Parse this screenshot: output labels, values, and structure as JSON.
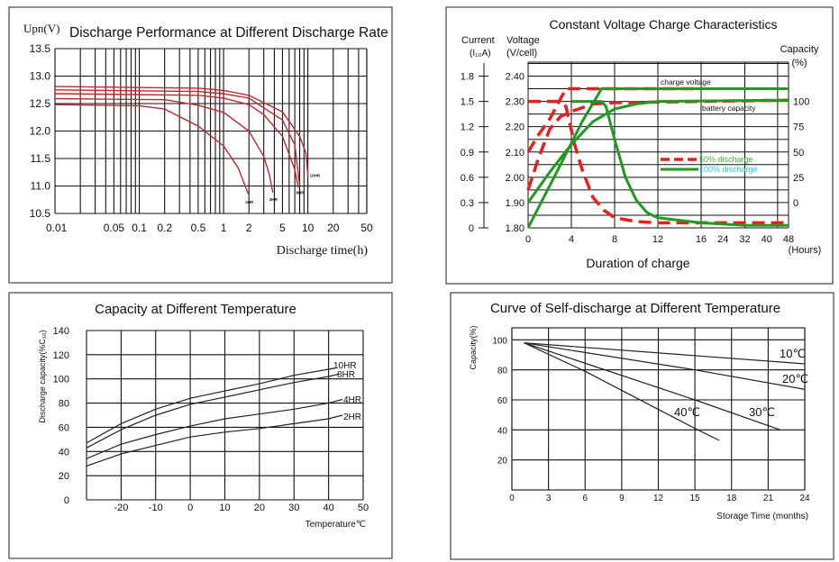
{
  "chart_data": [
    {
      "id": "discharge",
      "type": "line",
      "title": "Discharge Performance at Different Discharge Rate",
      "ylabel": "Upn(V)",
      "xlabel": "Discharge time(h)",
      "xscale": "log",
      "xlim": [
        0.01,
        50
      ],
      "ylim": [
        10.5,
        13.5
      ],
      "grid": true,
      "line_color": "#c0282d",
      "xticks": [
        "0.01",
        "0.05",
        "0.1",
        "0.2",
        "0.5",
        "1",
        "2",
        "5",
        "10",
        "20",
        "50"
      ],
      "xtick_values": [
        0.01,
        0.05,
        0.1,
        0.2,
        0.5,
        1,
        2,
        5,
        10,
        20,
        50
      ],
      "yticks": [
        "13.5",
        "13.0",
        "12.5",
        "12.0",
        "11.5",
        "11.0",
        "10.5"
      ],
      "ytick_values": [
        13.5,
        13.0,
        12.5,
        12.0,
        11.5,
        11.0,
        10.5
      ],
      "series": [
        {
          "name": "2HR",
          "points": [
            [
              0.01,
              12.48
            ],
            [
              0.1,
              12.46
            ],
            [
              0.2,
              12.4
            ],
            [
              0.5,
              12.09
            ],
            [
              1,
              11.73
            ],
            [
              1.5,
              11.32
            ],
            [
              1.8,
              11.0
            ],
            [
              2,
              10.83
            ]
          ]
        },
        {
          "name": "4HR",
          "points": [
            [
              0.01,
              12.59
            ],
            [
              0.2,
              12.57
            ],
            [
              0.5,
              12.47
            ],
            [
              1,
              12.34
            ],
            [
              2,
              12.0
            ],
            [
              3,
              11.54
            ],
            [
              3.5,
              11.2
            ],
            [
              3.85,
              10.88
            ]
          ]
        },
        {
          "name": "",
          "points": [
            [
              0.01,
              12.68
            ],
            [
              0.5,
              12.65
            ],
            [
              1,
              12.6
            ],
            [
              2,
              12.48
            ],
            [
              3,
              12.3
            ],
            [
              5,
              11.9
            ],
            [
              7,
              11.3
            ],
            [
              7.7,
              10.97
            ]
          ]
        },
        {
          "name": "8HR",
          "points": [
            [
              0.01,
              12.75
            ],
            [
              0.5,
              12.72
            ],
            [
              1,
              12.68
            ],
            [
              2,
              12.6
            ],
            [
              5,
              12.2
            ],
            [
              7,
              11.75
            ],
            [
              8,
              11.0
            ]
          ]
        },
        {
          "name": "10HR",
          "points": [
            [
              0.01,
              12.81
            ],
            [
              0.5,
              12.78
            ],
            [
              1,
              12.74
            ],
            [
              2,
              12.65
            ],
            [
              5,
              12.35
            ],
            [
              8,
              11.9
            ],
            [
              9.5,
              11.6
            ],
            [
              10,
              11.2
            ]
          ]
        }
      ]
    },
    {
      "id": "cv_charge",
      "type": "line",
      "title": "Constant Voltage Charge Characteristics",
      "xlabel": "Duration of charge",
      "xunit": "(Hours)",
      "y_left_current_label": [
        "Current",
        "(I₁₀A)"
      ],
      "y_left_voltage_label": [
        "Voltage",
        "(V/cell)"
      ],
      "y_right_label": [
        "Capacity",
        "(%)"
      ],
      "ylim_voltage": [
        1.8,
        2.45
      ],
      "xticks": [
        "0",
        "4",
        "8",
        "12",
        "16",
        "24",
        "32",
        "40",
        "48"
      ],
      "xtick_values": [
        0,
        4,
        8,
        12,
        16,
        24,
        32,
        40,
        48
      ],
      "voltage_ticks": [
        "2.40",
        "2.30",
        "2.20",
        "2.10",
        "2.00",
        "1.90",
        "1.80"
      ],
      "voltage_tick_values": [
        2.4,
        2.3,
        2.2,
        2.1,
        2.0,
        1.9,
        1.8
      ],
      "current_ticks": [
        "1.8",
        "1.5",
        "1.2",
        "0.9",
        "0.6",
        "0.3",
        "0"
      ],
      "capacity_ticks": [
        "100",
        "75",
        "50",
        "25",
        "0"
      ],
      "capacity_tick_voltages": [
        2.3,
        2.2,
        2.1,
        2.0,
        1.9
      ],
      "annotations": {
        "charge_voltage": "charge voltage",
        "battery_capacity": "battery capacity"
      },
      "legend": [
        {
          "label": "50% discharge",
          "color": "#e8201c",
          "text_color": "#3cb83c",
          "style": "dashed"
        },
        {
          "label": "100% discharge",
          "color": "#1e9a1e",
          "text_color": "#22d0e0",
          "style": "solid"
        }
      ],
      "series_note": "y values expressed on the voltage (V/cell) axis scale",
      "series": [
        {
          "name": "50% charge voltage",
          "group": "50% discharge",
          "points": [
            [
              0,
              2.1
            ],
            [
              1,
              2.17
            ],
            [
              2,
              2.23
            ],
            [
              3.5,
              2.35
            ],
            [
              16,
              2.35
            ]
          ]
        },
        {
          "name": "50% charge current",
          "group": "50% discharge",
          "points": [
            [
              0,
              2.3
            ],
            [
              3,
              2.3
            ],
            [
              3.5,
              2.28
            ],
            [
              4.3,
              2.13
            ],
            [
              5,
              2.03
            ],
            [
              6,
              1.92
            ],
            [
              7,
              1.87
            ],
            [
              8,
              1.84
            ],
            [
              10,
              1.825
            ],
            [
              12,
              1.82
            ],
            [
              48,
              1.82
            ]
          ]
        },
        {
          "name": "50% battery capacity",
          "group": "50% discharge",
          "points": [
            [
              0,
              1.95
            ],
            [
              1,
              2.08
            ],
            [
              2,
              2.19
            ],
            [
              3,
              2.24
            ],
            [
              4,
              2.26
            ],
            [
              6,
              2.29
            ],
            [
              8,
              2.295
            ],
            [
              16,
              2.3
            ],
            [
              48,
              2.305
            ]
          ]
        },
        {
          "name": "100% charge voltage",
          "group": "100% discharge",
          "points": [
            [
              0,
              1.8
            ],
            [
              3,
              2.05
            ],
            [
              5,
              2.22
            ],
            [
              6.8,
              2.35
            ],
            [
              48,
              2.35
            ]
          ]
        },
        {
          "name": "100% charge current",
          "group": "100% discharge",
          "points": [
            [
              4,
              2.3
            ],
            [
              6.8,
              2.3
            ],
            [
              7.2,
              2.28
            ],
            [
              8,
              2.15
            ],
            [
              9,
              2.0
            ],
            [
              10,
              1.91
            ],
            [
              11,
              1.86
            ],
            [
              12,
              1.84
            ],
            [
              16,
              1.82
            ],
            [
              32,
              1.81
            ],
            [
              48,
              1.81
            ]
          ]
        },
        {
          "name": "100% battery capacity",
          "group": "100% discharge",
          "points": [
            [
              0,
              1.9
            ],
            [
              2,
              2.02
            ],
            [
              4,
              2.13
            ],
            [
              6,
              2.22
            ],
            [
              8,
              2.27
            ],
            [
              10,
              2.29
            ],
            [
              12,
              2.3
            ],
            [
              48,
              2.305
            ]
          ]
        }
      ]
    },
    {
      "id": "capacity_temp",
      "type": "line",
      "title": "Capacity at Different Temperature",
      "ylabel": "Discharge capacity(%C₁₀)",
      "xlabel": "Temperature℃",
      "xlim": [
        -30,
        50
      ],
      "ylim": [
        0,
        140
      ],
      "xticks": [
        "-20",
        "-10",
        "0",
        "10",
        "20",
        "30",
        "40",
        "50"
      ],
      "xtick_values": [
        -20,
        -10,
        0,
        10,
        20,
        30,
        40,
        50
      ],
      "yticks": [
        "140",
        "120",
        "100",
        "80",
        "60",
        "40",
        "20",
        "0"
      ],
      "ytick_values": [
        140,
        120,
        100,
        80,
        60,
        40,
        20,
        0
      ],
      "series": [
        {
          "name": "10HR",
          "points": [
            [
              -30,
              47
            ],
            [
              -20,
              63
            ],
            [
              -10,
              75
            ],
            [
              0,
              84
            ],
            [
              10,
              90
            ],
            [
              20,
              96
            ],
            [
              30,
              103
            ],
            [
              40,
              108
            ],
            [
              42,
              109
            ]
          ]
        },
        {
          "name": "8HR",
          "points": [
            [
              -30,
              43
            ],
            [
              -20,
              58
            ],
            [
              -10,
              70
            ],
            [
              0,
              79
            ],
            [
              10,
              85
            ],
            [
              20,
              91
            ],
            [
              30,
              97
            ],
            [
              40,
              102
            ],
            [
              43,
              104
            ]
          ]
        },
        {
          "name": "4HR",
          "points": [
            [
              -30,
              34
            ],
            [
              -20,
              46
            ],
            [
              -10,
              54
            ],
            [
              0,
              61
            ],
            [
              10,
              67
            ],
            [
              20,
              71
            ],
            [
              30,
              75
            ],
            [
              40,
              80
            ],
            [
              44,
              83
            ]
          ]
        },
        {
          "name": "2HR",
          "points": [
            [
              -30,
              28
            ],
            [
              -20,
              38
            ],
            [
              -10,
              45
            ],
            [
              0,
              52
            ],
            [
              10,
              56
            ],
            [
              20,
              59
            ],
            [
              30,
              63
            ],
            [
              40,
              67
            ],
            [
              44,
              70
            ]
          ]
        }
      ]
    },
    {
      "id": "self_discharge",
      "type": "line",
      "title": "Curve of Self-discharge at Different Temperature",
      "ylabel": "Capacity(%)",
      "xlabel": "Storage Time (months)",
      "xlim": [
        0,
        24
      ],
      "ylim": [
        0,
        108
      ],
      "xticks": [
        "0",
        "3",
        "6",
        "9",
        "12",
        "15",
        "18",
        "21",
        "24"
      ],
      "xtick_values": [
        0,
        3,
        6,
        9,
        12,
        15,
        18,
        21,
        24
      ],
      "yticks": [
        "100",
        "80",
        "60",
        "40",
        "20"
      ],
      "ytick_values": [
        100,
        80,
        60,
        40,
        20
      ],
      "series": [
        {
          "name": "10℃",
          "points": [
            [
              1,
              98
            ],
            [
              24,
              84
            ]
          ]
        },
        {
          "name": "20℃",
          "points": [
            [
              1,
              98
            ],
            [
              15,
              80
            ],
            [
              24,
              67
            ]
          ]
        },
        {
          "name": "30℃",
          "points": [
            [
              1,
              98
            ],
            [
              15,
              60
            ],
            [
              22,
              40
            ]
          ]
        },
        {
          "name": "40℃",
          "points": [
            [
              1,
              98
            ],
            [
              6,
              79
            ],
            [
              15,
              41
            ],
            [
              17,
              33
            ]
          ]
        }
      ]
    }
  ]
}
